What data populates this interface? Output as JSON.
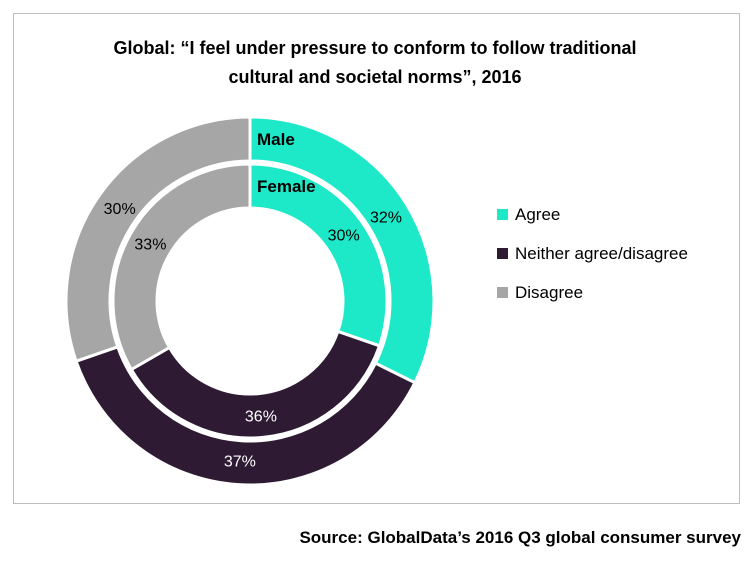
{
  "title": {
    "line1": "Global: “I feel under pressure to conform to follow traditional",
    "line2": "cultural and societal norms”, 2016"
  },
  "source": "Source: GlobalData’s 2016 Q3 global consumer survey",
  "colors": {
    "agree": "#1de9c8",
    "neither": "#2e1a33",
    "disagree": "#a6a6a6",
    "separator": "#ffffff"
  },
  "chart_data": {
    "type": "donut",
    "title": "Global: “I feel under pressure to conform to follow traditional cultural and societal norms”, 2016",
    "categories": [
      "Agree",
      "Neither agree/disagree",
      "Disagree"
    ],
    "series": [
      {
        "name": "Male",
        "values": [
          32,
          37,
          30
        ],
        "labels": [
          "32%",
          "37%",
          "30%"
        ]
      },
      {
        "name": "Female",
        "values": [
          30,
          36,
          33
        ],
        "labels": [
          "30%",
          "36%",
          "33%"
        ]
      }
    ],
    "legend": {
      "position": "right",
      "items": [
        "Agree",
        "Neither agree/disagree",
        "Disagree"
      ]
    }
  }
}
